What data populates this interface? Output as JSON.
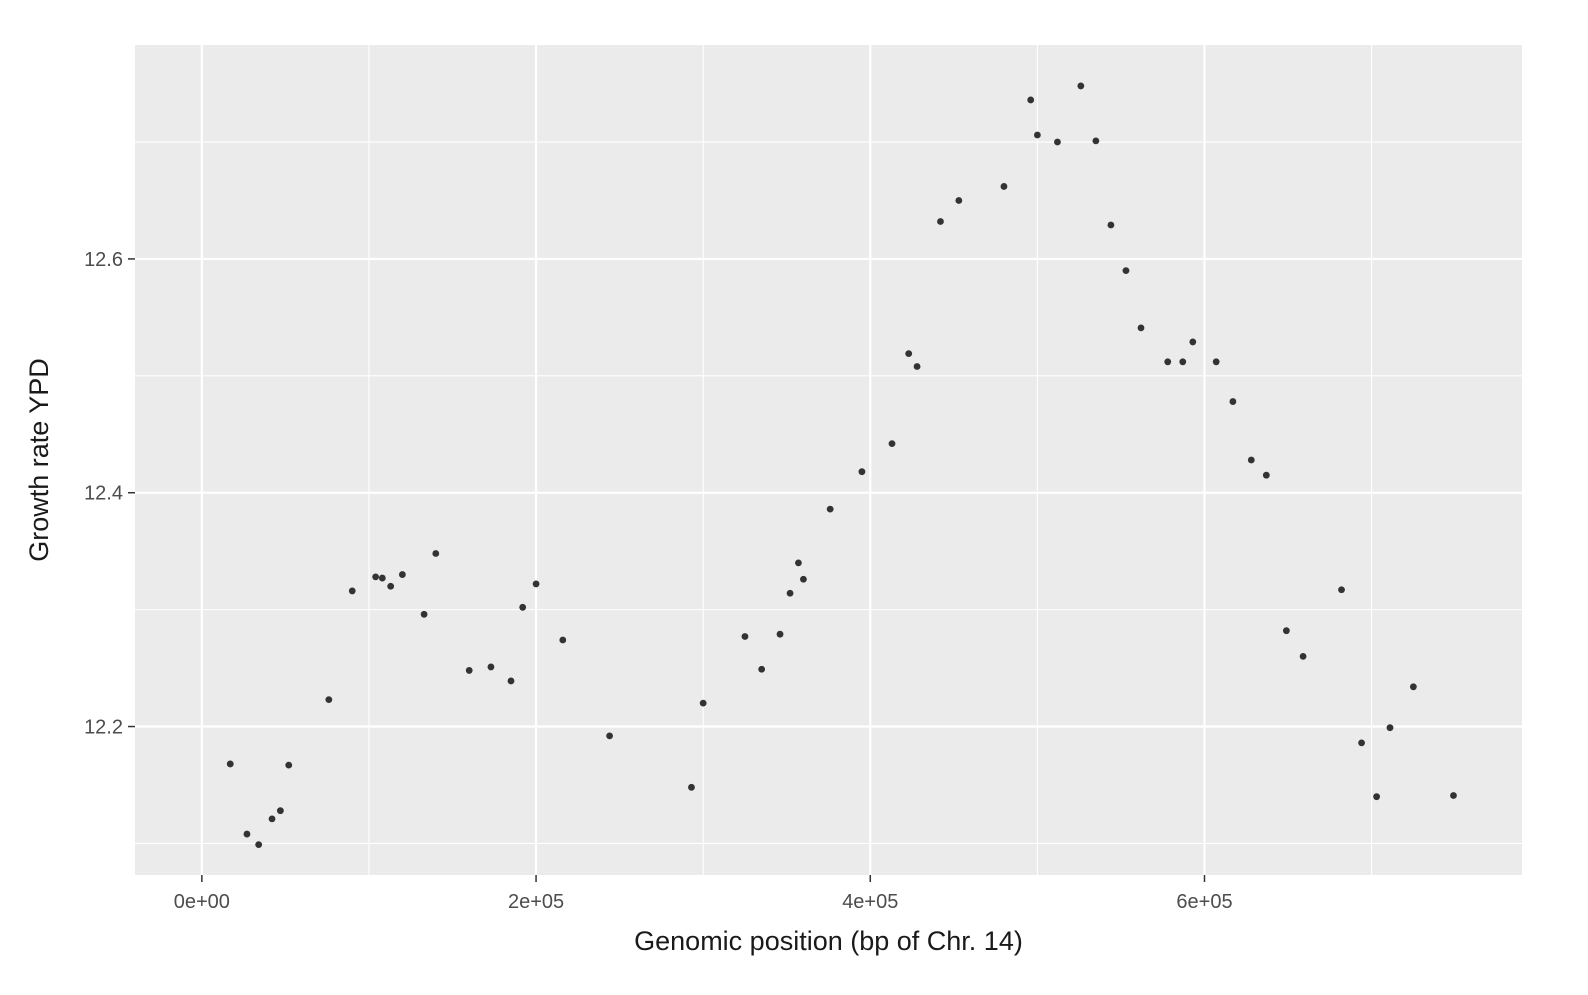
{
  "chart_data": {
    "type": "scatter",
    "title": "",
    "xlabel": "Genomic position (bp of Chr. 14)",
    "ylabel": "Growth rate YPD",
    "xlim": [
      -40000,
      790000
    ],
    "ylim": [
      12.073,
      12.783
    ],
    "x_ticks": [
      {
        "value": 0,
        "label": "0e+00"
      },
      {
        "value": 200000,
        "label": "2e+05"
      },
      {
        "value": 400000,
        "label": "4e+05"
      },
      {
        "value": 600000,
        "label": "6e+05"
      }
    ],
    "y_ticks": [
      {
        "value": 12.2,
        "label": "12.2"
      },
      {
        "value": 12.4,
        "label": "12.4"
      },
      {
        "value": 12.6,
        "label": "12.6"
      }
    ],
    "x_minor": [
      100000,
      300000,
      500000,
      700000
    ],
    "y_minor": [
      12.1,
      12.3,
      12.5,
      12.7
    ],
    "grid": true,
    "background": "#ebebeb",
    "point_color": "#333333",
    "points": [
      [
        17000,
        12.168
      ],
      [
        27000,
        12.108
      ],
      [
        34000,
        12.099
      ],
      [
        42000,
        12.121
      ],
      [
        47000,
        12.128
      ],
      [
        52000,
        12.167
      ],
      [
        76000,
        12.223
      ],
      [
        90000,
        12.316
      ],
      [
        104000,
        12.328
      ],
      [
        108000,
        12.327
      ],
      [
        113000,
        12.32
      ],
      [
        120000,
        12.33
      ],
      [
        133000,
        12.296
      ],
      [
        140000,
        12.348
      ],
      [
        160000,
        12.248
      ],
      [
        173000,
        12.251
      ],
      [
        185000,
        12.239
      ],
      [
        192000,
        12.302
      ],
      [
        200000,
        12.322
      ],
      [
        216000,
        12.274
      ],
      [
        244000,
        12.192
      ],
      [
        293000,
        12.148
      ],
      [
        300000,
        12.22
      ],
      [
        325000,
        12.277
      ],
      [
        335000,
        12.249
      ],
      [
        346000,
        12.279
      ],
      [
        352000,
        12.314
      ],
      [
        357000,
        12.34
      ],
      [
        360000,
        12.326
      ],
      [
        376000,
        12.386
      ],
      [
        395000,
        12.418
      ],
      [
        413000,
        12.442
      ],
      [
        423000,
        12.519
      ],
      [
        428000,
        12.508
      ],
      [
        442000,
        12.632
      ],
      [
        453000,
        12.65
      ],
      [
        480000,
        12.662
      ],
      [
        496000,
        12.736
      ],
      [
        500000,
        12.706
      ],
      [
        512000,
        12.7
      ],
      [
        526000,
        12.748
      ],
      [
        535000,
        12.701
      ],
      [
        544000,
        12.629
      ],
      [
        553000,
        12.59
      ],
      [
        562000,
        12.541
      ],
      [
        578000,
        12.512
      ],
      [
        587000,
        12.512
      ],
      [
        593000,
        12.529
      ],
      [
        607000,
        12.512
      ],
      [
        617000,
        12.478
      ],
      [
        628000,
        12.428
      ],
      [
        637000,
        12.415
      ],
      [
        649000,
        12.282
      ],
      [
        659000,
        12.26
      ],
      [
        682000,
        12.317
      ],
      [
        694000,
        12.186
      ],
      [
        703000,
        12.14
      ],
      [
        711000,
        12.199
      ],
      [
        725000,
        12.234
      ],
      [
        749000,
        12.141
      ]
    ]
  }
}
